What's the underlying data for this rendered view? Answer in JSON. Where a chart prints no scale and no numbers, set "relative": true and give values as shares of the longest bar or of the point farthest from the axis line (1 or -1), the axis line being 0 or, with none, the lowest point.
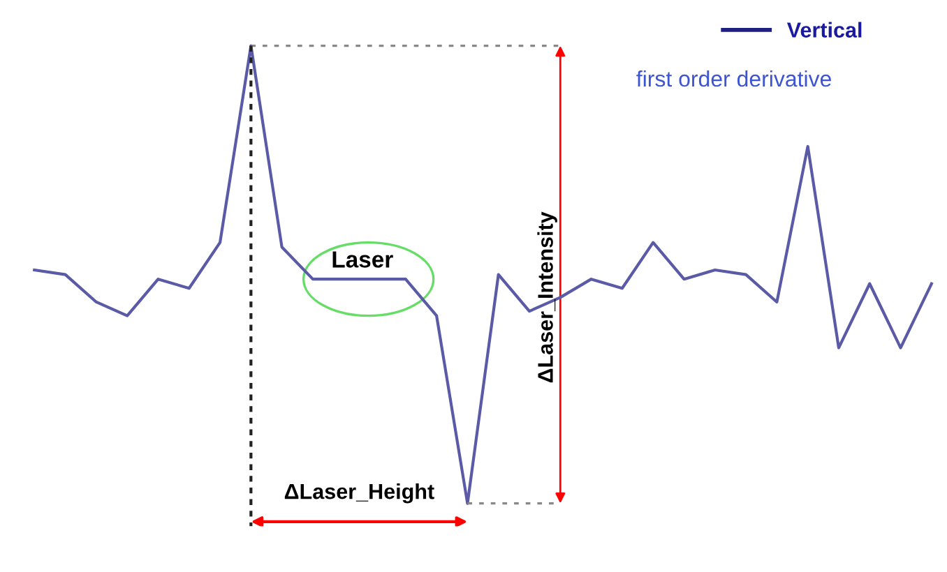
{
  "chart_data": {
    "type": "line",
    "relative": true,
    "legend": "top right",
    "categories": [
      null,
      null,
      null,
      null,
      null,
      null,
      null,
      null,
      null,
      null,
      null,
      null,
      null,
      null,
      null,
      null,
      null,
      null,
      null,
      null,
      null,
      null,
      null,
      null,
      null,
      null,
      null,
      null,
      null,
      null
    ],
    "series": [
      {
        "name": "Vertical",
        "color": "#5a5aa6",
        "values": [
          0.51,
          0.5,
          0.44,
          0.41,
          0.49,
          0.47,
          0.57,
          1,
          0.56,
          0.49,
          0.49,
          0.49,
          0.49,
          0.41,
          0,
          0.5,
          0.42,
          0.45,
          0.49,
          0.47,
          0.57,
          0.49,
          0.51,
          0.5,
          0.44,
          0.78,
          0.34,
          0.48,
          0.34,
          0.48
        ]
      }
    ],
    "annotations": [
      "first order derivative",
      "Laser",
      "ΔLaser_Intensity",
      "ΔLaser_Height"
    ]
  }
}
